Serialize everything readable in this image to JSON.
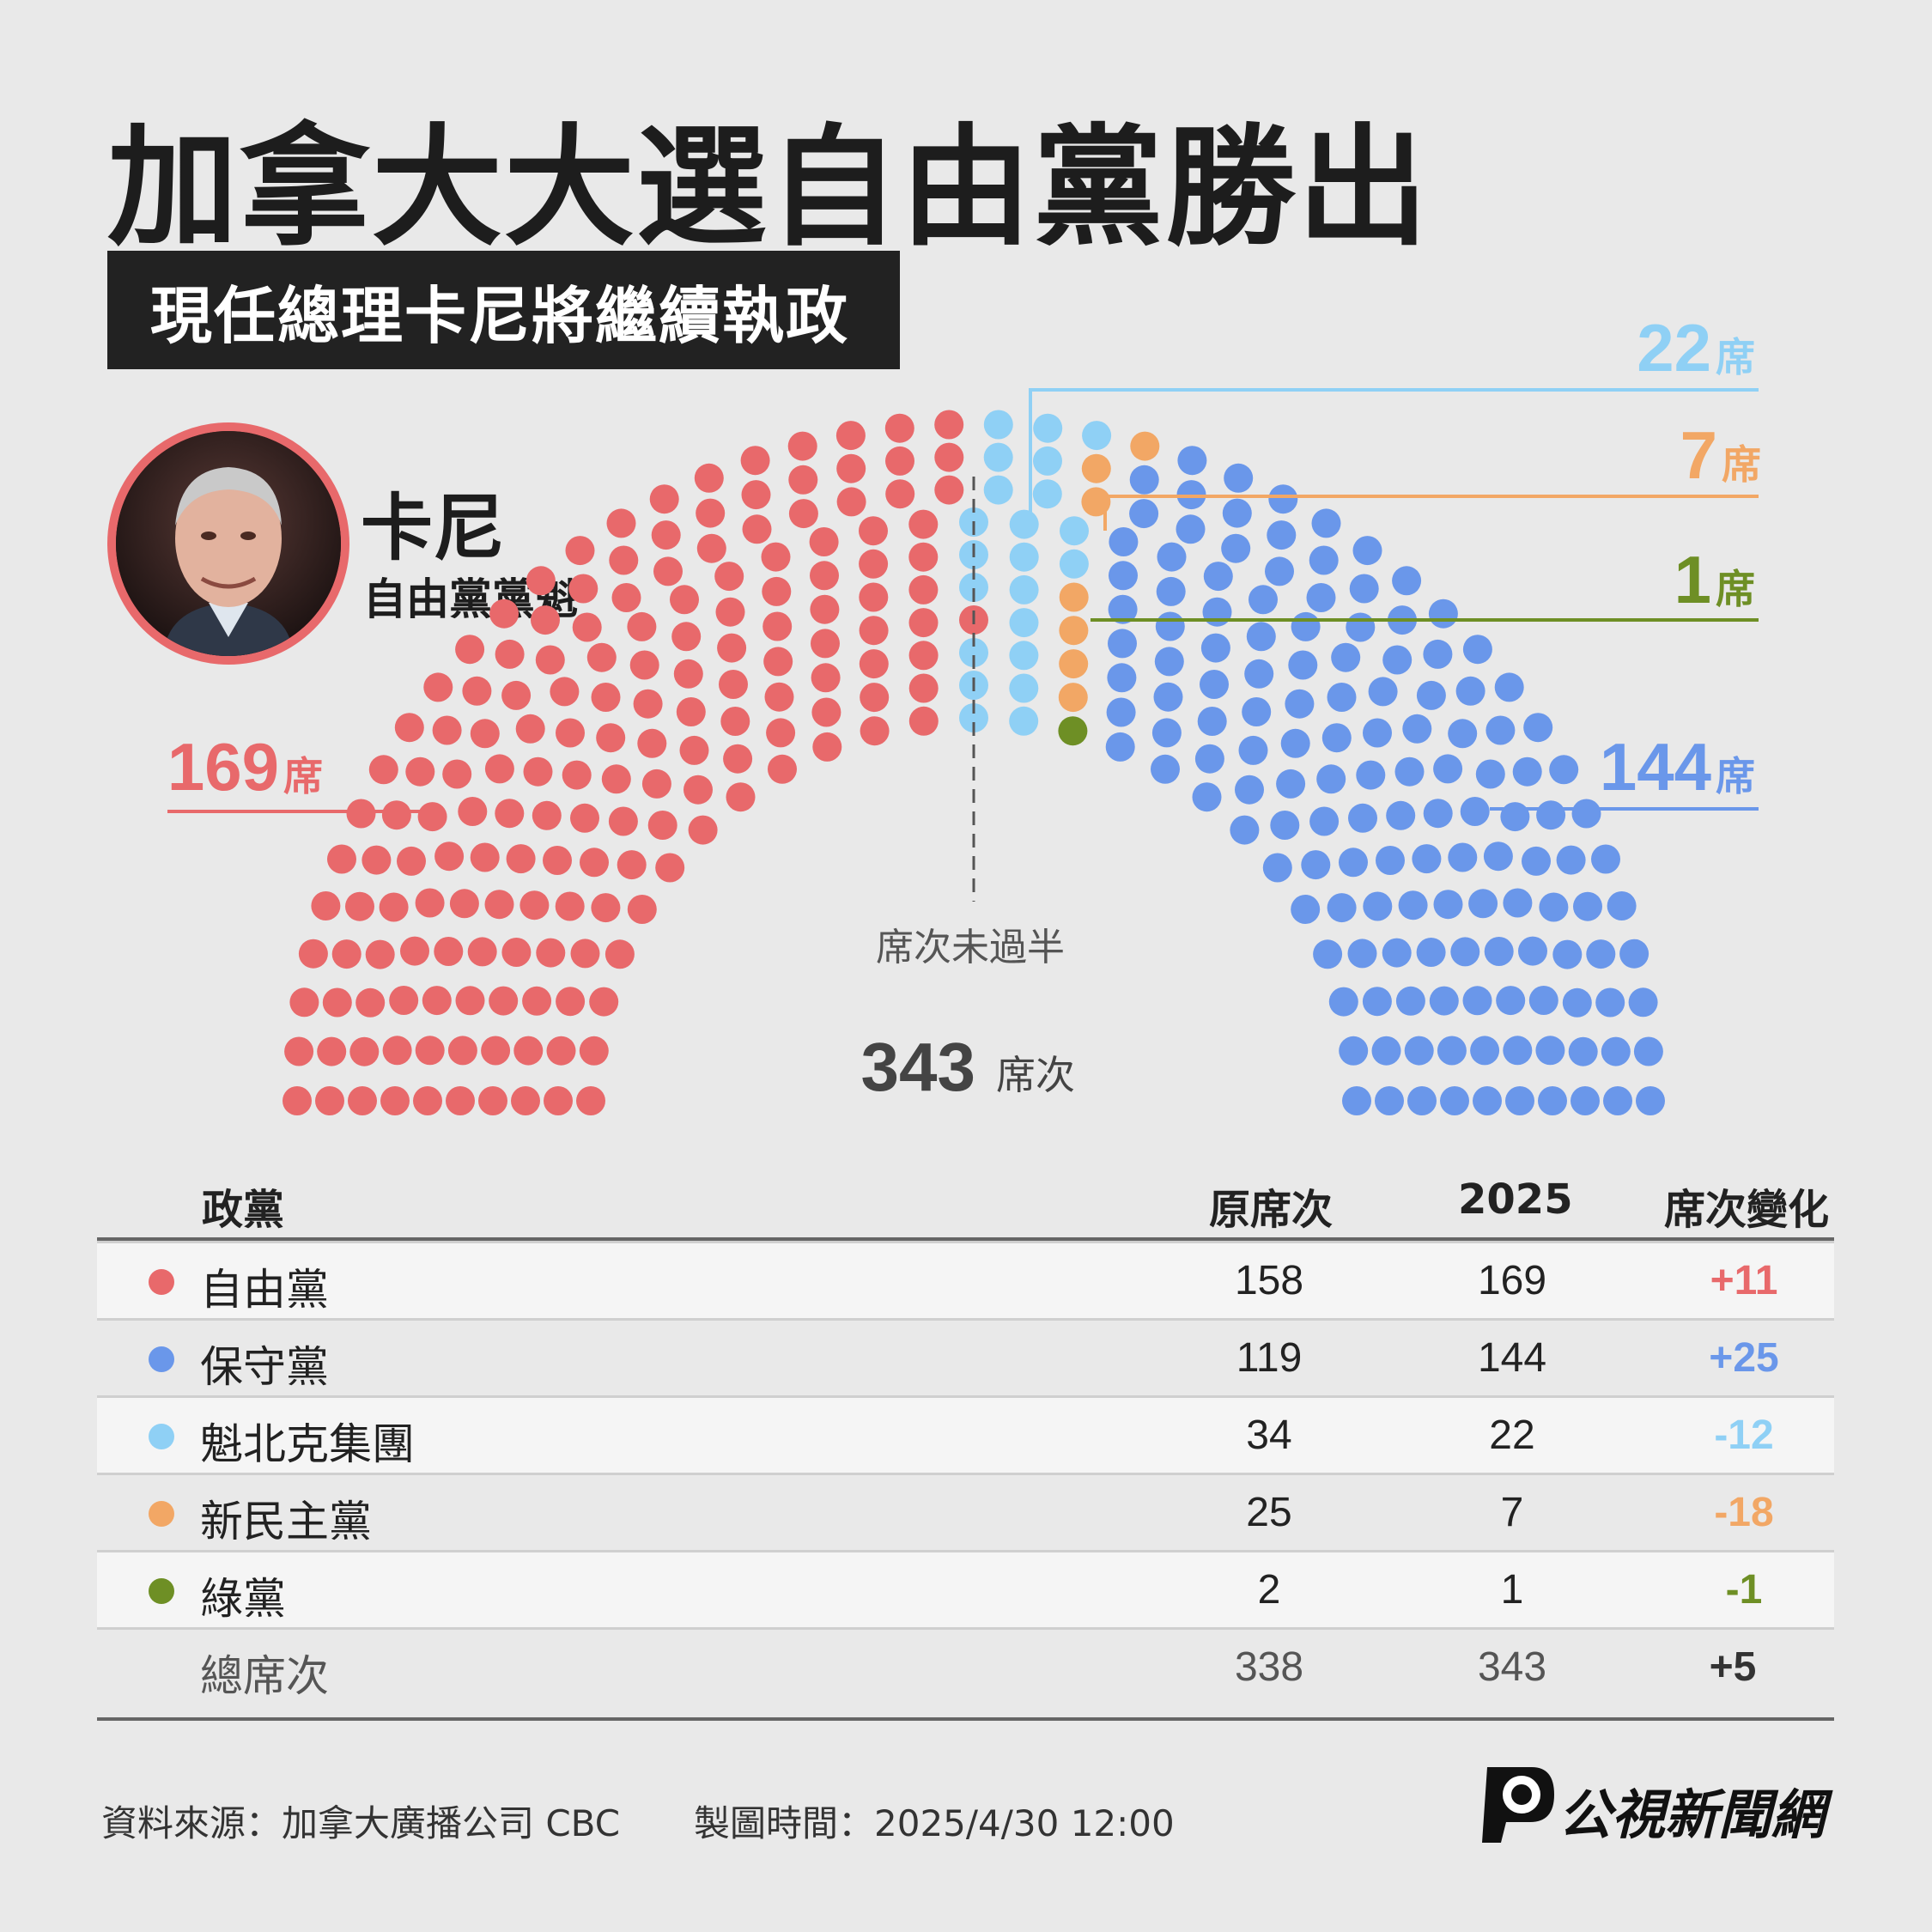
{
  "title": "加拿大大選自由黨勝出",
  "subtitle": "現任總理卡尼將繼續執政",
  "leader": {
    "name": "卡尼",
    "role": "自由黨黨魁"
  },
  "chart_data": {
    "type": "parliament",
    "total_label": "343",
    "total_unit": "席次",
    "majority_label": "席次未過半",
    "seat_unit": "席",
    "series": [
      {
        "name": "自由黨",
        "seats": 169,
        "color": "#e8696b"
      },
      {
        "name": "魁北克集團",
        "seats": 22,
        "color": "#8fd0f5"
      },
      {
        "name": "新民主黨",
        "seats": 7,
        "color": "#f2a765"
      },
      {
        "name": "綠黨",
        "seats": 1,
        "color": "#6e8f25"
      },
      {
        "name": "保守黨",
        "seats": 144,
        "color": "#6a97ea"
      }
    ]
  },
  "table": {
    "headers": {
      "party": "政黨",
      "prev": "原席次",
      "cur": "2025",
      "change": "席次變化"
    },
    "rows": [
      {
        "party": "自由黨",
        "prev": "158",
        "cur": "169",
        "change": "+11",
        "color": "#e8696b",
        "change_color": "#e8696b"
      },
      {
        "party": "保守黨",
        "prev": "119",
        "cur": "144",
        "change": "+25",
        "color": "#6a97ea",
        "change_color": "#6a97ea"
      },
      {
        "party": "魁北克集團",
        "prev": "34",
        "cur": "22",
        "change": "-12",
        "color": "#8fd0f5",
        "change_color": "#8fd0f5"
      },
      {
        "party": "新民主黨",
        "prev": "25",
        "cur": "7",
        "change": "-18",
        "color": "#f2a765",
        "change_color": "#f2a765"
      },
      {
        "party": "綠黨",
        "prev": "2",
        "cur": "1",
        "change": "-1",
        "color": "#6e8f25",
        "change_color": "#6e8f25"
      }
    ],
    "total": {
      "party": "總席次",
      "prev": "338",
      "cur": "343",
      "change": "+5"
    }
  },
  "footer": {
    "source": "資料來源：加拿大廣播公司 CBC",
    "time": "製圖時間：2025/4/30 12:00",
    "brand": "公視新聞網"
  }
}
